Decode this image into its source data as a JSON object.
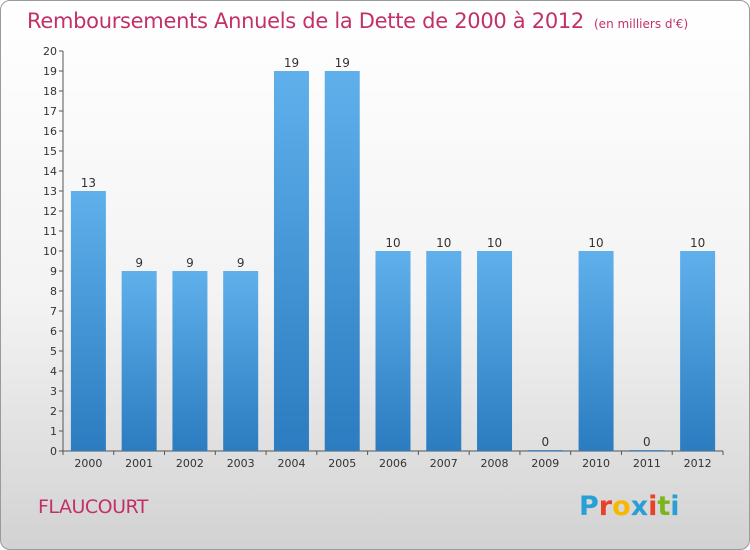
{
  "title": "Remboursements Annuels de la Dette de 2000 à 2012",
  "unit": "(en milliers d'€)",
  "commune": "FLAUCOURT",
  "logo": {
    "letters": [
      "P",
      "r",
      "o",
      "x",
      "i",
      "t",
      "i"
    ],
    "colors": [
      "#2a9fd6",
      "#e8402a",
      "#f6b800",
      "#2a9fd6",
      "#e8402a",
      "#7ab51d",
      "#2a9fd6"
    ]
  },
  "chart_data": {
    "type": "bar",
    "categories": [
      "2000",
      "2001",
      "2002",
      "2003",
      "2004",
      "2005",
      "2006",
      "2007",
      "2008",
      "2009",
      "2010",
      "2011",
      "2012"
    ],
    "values": [
      13,
      9,
      9,
      9,
      19,
      19,
      10,
      10,
      10,
      0,
      10,
      0,
      10
    ],
    "data_labels": [
      "13",
      "9",
      "9",
      "9",
      "19",
      "19",
      "10",
      "10",
      "10",
      "0",
      "10",
      "0",
      "10"
    ],
    "ylim": [
      0,
      20
    ],
    "yticks": [
      0,
      1,
      2,
      3,
      4,
      5,
      6,
      7,
      8,
      9,
      10,
      11,
      12,
      13,
      14,
      15,
      16,
      17,
      18,
      19,
      20
    ],
    "bar_color": "#3a8fd4",
    "grid": false,
    "legend": "none"
  }
}
